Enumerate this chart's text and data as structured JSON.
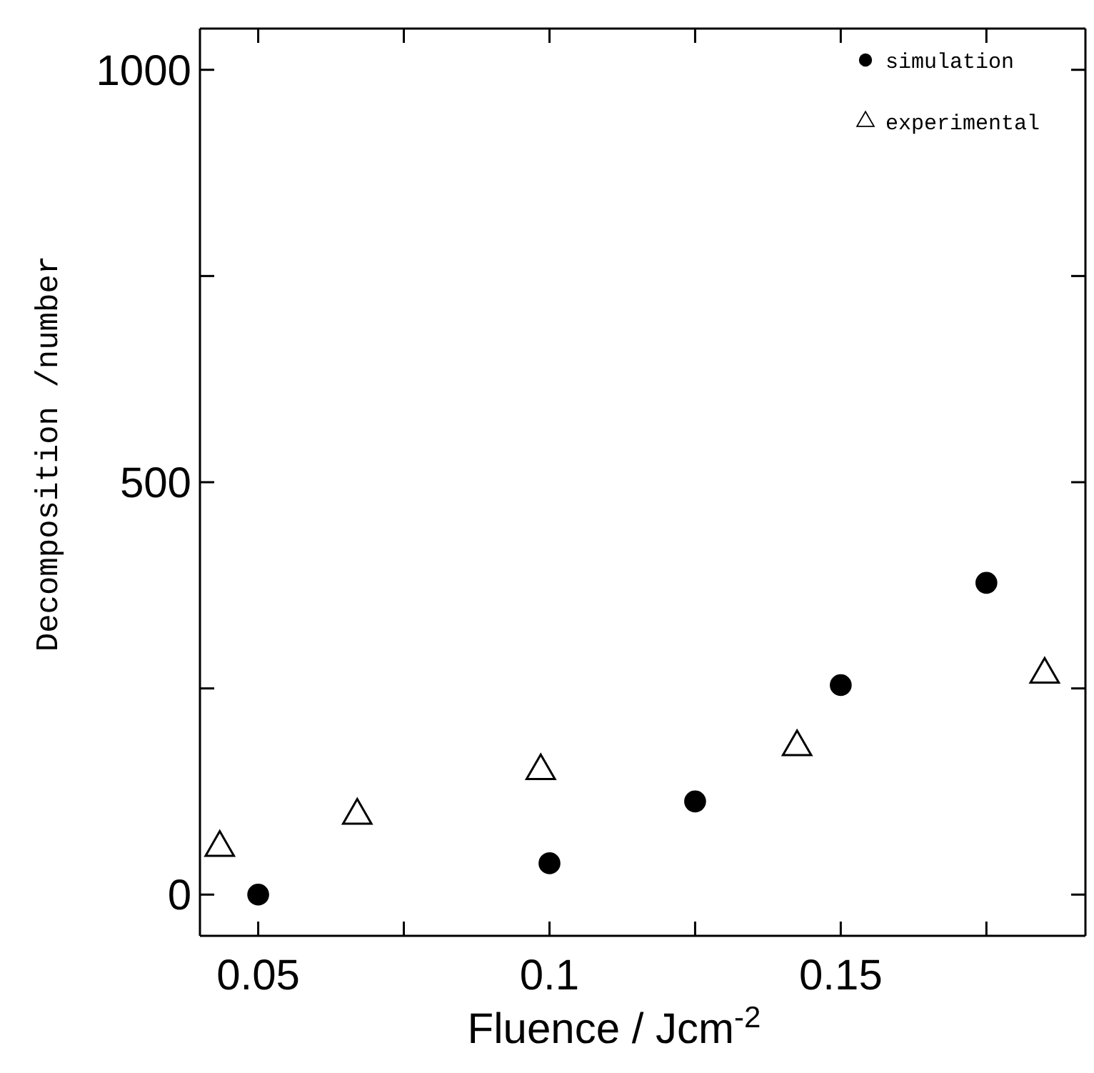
{
  "chart_data": {
    "type": "scatter",
    "xlabel": "Fluence / Jcm$^{-2}$",
    "ylabel": "Decomposition /number",
    "xlim": [
      0.04,
      0.192
    ],
    "ylim": [
      -50,
      1050
    ],
    "xticks": [
      0.05,
      {
        "value": 0.075,
        "label": null
      },
      0.1,
      {
        "value": 0.125,
        "label": null
      },
      0.15,
      {
        "value": 0.175,
        "label": null
      }
    ],
    "yticks": [
      0,
      {
        "value": 250,
        "label": null
      },
      500,
      {
        "value": 750,
        "label": null
      },
      1000
    ],
    "legend": "top right",
    "grid": false,
    "series": [
      {
        "name": "simulation",
        "color": "#000000",
        "marker": "circle",
        "x": [
          0.05,
          0.1,
          0.125,
          0.15,
          0.175
        ],
        "values": [
          0,
          38,
          113,
          254,
          378
        ]
      },
      {
        "name": "experimental",
        "color": "#000000",
        "marker": "triangle",
        "x": [
          0.0434,
          0.067,
          0.0985,
          0.1425,
          0.185
        ],
        "values": [
          57,
          96,
          150,
          179,
          267
        ]
      }
    ]
  }
}
